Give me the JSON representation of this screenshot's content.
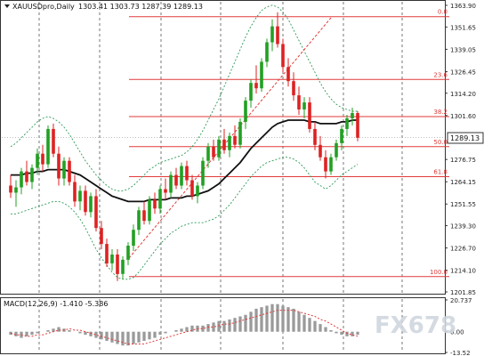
{
  "chart_header": {
    "symbol": "XAUUSDpro,Daily",
    "ohlc": "1303.41 1303.73 1287.39 1289.13",
    "icon": "chart-collapse-icon"
  },
  "macd_header": "MACD(12,26,9) -1.410 -5.386",
  "watermark": "FX678",
  "colors": {
    "bull": "#22a022",
    "bear": "#dd2222",
    "ma": "#111111",
    "band": "#2e9a5a",
    "fib": "#e23a3a",
    "grid": "#555555",
    "price_tag_bg": "#ffffff"
  },
  "chart_data": {
    "type": "candlestick",
    "price_axis": {
      "min": 1201.85,
      "max": 1363.9,
      "ticks": [
        "1363.90",
        "1351.65",
        "1339.05",
        "1326.45",
        "1314.20",
        "1301.60",
        "1289.13",
        "1276.75",
        "1264.15",
        "1251.55",
        "1239.30",
        "1226.70",
        "1214.10",
        "1201.85"
      ]
    },
    "current_price": "1289.13",
    "fib_levels": [
      {
        "label": "0.0",
        "price": 1357.5
      },
      {
        "label": "23.6",
        "price": 1322.0
      },
      {
        "label": "38.2",
        "price": 1301.0
      },
      {
        "label": "50.0",
        "price": 1284.0
      },
      {
        "label": "61.8",
        "price": 1267.0
      },
      {
        "label": "100.0",
        "price": 1210.5
      }
    ],
    "candles": [
      [
        1262,
        1268,
        1255,
        1258
      ],
      [
        1258,
        1265,
        1250,
        1261
      ],
      [
        1261,
        1272,
        1257,
        1270
      ],
      [
        1270,
        1276,
        1262,
        1264
      ],
      [
        1264,
        1274,
        1260,
        1272
      ],
      [
        1272,
        1283,
        1268,
        1280
      ],
      [
        1280,
        1285,
        1270,
        1274
      ],
      [
        1274,
        1296,
        1272,
        1294
      ],
      [
        1294,
        1297,
        1278,
        1280
      ],
      [
        1280,
        1284,
        1262,
        1266
      ],
      [
        1266,
        1278,
        1262,
        1276
      ],
      [
        1276,
        1278,
        1262,
        1264
      ],
      [
        1264,
        1268,
        1250,
        1253
      ],
      [
        1253,
        1262,
        1248,
        1259
      ],
      [
        1259,
        1262,
        1245,
        1247
      ],
      [
        1247,
        1258,
        1244,
        1256
      ],
      [
        1256,
        1260,
        1236,
        1238
      ],
      [
        1238,
        1242,
        1226,
        1229
      ],
      [
        1229,
        1232,
        1216,
        1218
      ],
      [
        1218,
        1226,
        1214,
        1223
      ],
      [
        1223,
        1226,
        1208,
        1212
      ],
      [
        1212,
        1222,
        1209,
        1220
      ],
      [
        1220,
        1230,
        1217,
        1228
      ],
      [
        1228,
        1240,
        1225,
        1237
      ],
      [
        1237,
        1250,
        1234,
        1248
      ],
      [
        1248,
        1253,
        1240,
        1242
      ],
      [
        1242,
        1256,
        1240,
        1254
      ],
      [
        1254,
        1258,
        1246,
        1249
      ],
      [
        1249,
        1262,
        1246,
        1260
      ],
      [
        1260,
        1266,
        1254,
        1258
      ],
      [
        1258,
        1270,
        1255,
        1268
      ],
      [
        1268,
        1272,
        1260,
        1262
      ],
      [
        1262,
        1275,
        1260,
        1273
      ],
      [
        1273,
        1276,
        1262,
        1265
      ],
      [
        1265,
        1268,
        1254,
        1256
      ],
      [
        1256,
        1264,
        1252,
        1262
      ],
      [
        1262,
        1278,
        1260,
        1276
      ],
      [
        1276,
        1286,
        1272,
        1284
      ],
      [
        1284,
        1288,
        1276,
        1278
      ],
      [
        1278,
        1290,
        1276,
        1288
      ],
      [
        1288,
        1294,
        1280,
        1282
      ],
      [
        1282,
        1292,
        1278,
        1290
      ],
      [
        1290,
        1296,
        1283,
        1285
      ],
      [
        1285,
        1300,
        1283,
        1298
      ],
      [
        1298,
        1312,
        1294,
        1310
      ],
      [
        1310,
        1322,
        1306,
        1320
      ],
      [
        1320,
        1330,
        1314,
        1317
      ],
      [
        1317,
        1334,
        1315,
        1332
      ],
      [
        1332,
        1345,
        1329,
        1343
      ],
      [
        1343,
        1356,
        1338,
        1352
      ],
      [
        1352,
        1360,
        1340,
        1342
      ],
      [
        1342,
        1345,
        1326,
        1329
      ],
      [
        1329,
        1334,
        1318,
        1321
      ],
      [
        1321,
        1326,
        1310,
        1313
      ],
      [
        1313,
        1318,
        1302,
        1305
      ],
      [
        1305,
        1312,
        1300,
        1309
      ],
      [
        1309,
        1312,
        1292,
        1294
      ],
      [
        1294,
        1298,
        1282,
        1285
      ],
      [
        1285,
        1290,
        1276,
        1278
      ],
      [
        1278,
        1282,
        1266,
        1270
      ],
      [
        1270,
        1280,
        1268,
        1278
      ],
      [
        1278,
        1288,
        1276,
        1286
      ],
      [
        1286,
        1296,
        1282,
        1294
      ],
      [
        1294,
        1302,
        1290,
        1300
      ],
      [
        1300,
        1306,
        1296,
        1303
      ],
      [
        1303,
        1304,
        1287,
        1289
      ]
    ],
    "moving_average": [
      1268,
      1268,
      1268,
      1269,
      1269,
      1270,
      1270,
      1271,
      1271,
      1271,
      1271,
      1270,
      1269,
      1268,
      1266,
      1264,
      1262,
      1260,
      1258,
      1256,
      1255,
      1254,
      1253,
      1253,
      1253,
      1253,
      1254,
      1254,
      1254,
      1254,
      1255,
      1255,
      1255,
      1256,
      1256,
      1257,
      1258,
      1259,
      1261,
      1263,
      1266,
      1269,
      1272,
      1275,
      1279,
      1283,
      1286,
      1289,
      1292,
      1295,
      1297,
      1298,
      1299,
      1299,
      1299,
      1299,
      1298,
      1298,
      1297,
      1297,
      1297,
      1297,
      1298,
      1298,
      1299,
      1299
    ],
    "band_upper": [
      1284,
      1286,
      1289,
      1292,
      1295,
      1298,
      1300,
      1301,
      1300,
      1298,
      1295,
      1291,
      1286,
      1281,
      1276,
      1272,
      1268,
      1265,
      1262,
      1260,
      1259,
      1259,
      1260,
      1262,
      1265,
      1268,
      1271,
      1273,
      1275,
      1276,
      1277,
      1278,
      1279,
      1281,
      1284,
      1288,
      1293,
      1299,
      1305,
      1311,
      1318,
      1325,
      1332,
      1339,
      1346,
      1352,
      1357,
      1361,
      1363,
      1364,
      1363,
      1360,
      1356,
      1350,
      1344,
      1338,
      1332,
      1326,
      1320,
      1315,
      1311,
      1308,
      1306,
      1305,
      1304,
      1304
    ],
    "band_lower": [
      1246,
      1246,
      1247,
      1248,
      1249,
      1250,
      1251,
      1252,
      1253,
      1253,
      1252,
      1250,
      1247,
      1243,
      1238,
      1232,
      1226,
      1221,
      1217,
      1213,
      1210,
      1209,
      1209,
      1210,
      1213,
      1217,
      1221,
      1225,
      1229,
      1232,
      1235,
      1237,
      1239,
      1240,
      1241,
      1241,
      1241,
      1242,
      1243,
      1245,
      1248,
      1251,
      1255,
      1259,
      1263,
      1267,
      1270,
      1273,
      1275,
      1276,
      1277,
      1278,
      1278,
      1277,
      1275,
      1272,
      1268,
      1264,
      1262,
      1260,
      1262,
      1265,
      1268,
      1270,
      1272,
      1274
    ],
    "macd_axis": {
      "min": -13.52,
      "max": 20.737,
      "ticks": [
        "20.737",
        "0.00",
        "-13.52"
      ]
    },
    "macd_hist": [
      -2,
      -3,
      -4,
      -3,
      -2,
      -1,
      0,
      1,
      2,
      3,
      2,
      1,
      0,
      -1,
      -2,
      -3,
      -4,
      -5,
      -6,
      -7,
      -8,
      -9,
      -9,
      -8,
      -7,
      -6,
      -5,
      -4,
      -2,
      -1,
      0,
      1,
      2,
      3,
      4,
      4,
      4,
      5,
      6,
      7,
      7,
      8,
      9,
      10,
      11,
      13,
      15,
      16,
      17,
      18,
      18,
      17,
      16,
      15,
      13,
      11,
      9,
      7,
      5,
      3,
      1,
      -1,
      -2,
      -3,
      -3,
      -2
    ],
    "macd_signal": [
      -1,
      -2,
      -2,
      -3,
      -3,
      -2,
      -2,
      -1,
      0,
      1,
      1,
      2,
      1,
      1,
      0,
      -1,
      -2,
      -3,
      -4,
      -5,
      -6,
      -7,
      -8,
      -8,
      -8,
      -8,
      -7,
      -6,
      -5,
      -4,
      -3,
      -2,
      -1,
      0,
      1,
      2,
      2,
      3,
      3,
      4,
      5,
      5,
      6,
      7,
      8,
      9,
      10,
      11,
      12,
      13,
      14,
      14,
      14,
      14,
      13,
      12,
      11,
      10,
      8,
      7,
      5,
      3,
      1,
      -1,
      -2,
      -3
    ]
  }
}
